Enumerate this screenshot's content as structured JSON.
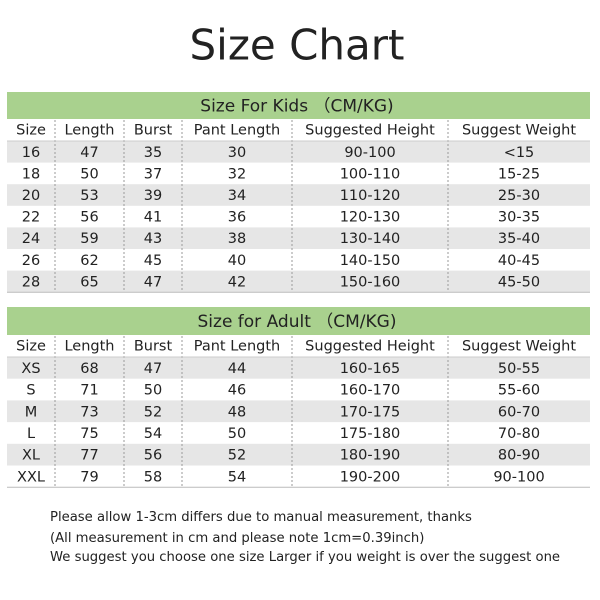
{
  "title": "Size Chart",
  "tables": [
    {
      "title": "Size For Kids （CM/KG)",
      "headers": [
        "Size",
        "Length",
        "Burst",
        "Pant Length",
        "Suggested Height",
        "Suggest Weight"
      ],
      "rows": [
        [
          "16",
          "47",
          "35",
          "30",
          "90-100",
          "<15"
        ],
        [
          "18",
          "50",
          "37",
          "32",
          "100-110",
          "15-25"
        ],
        [
          "20",
          "53",
          "39",
          "34",
          "110-120",
          "25-30"
        ],
        [
          "22",
          "56",
          "41",
          "36",
          "120-130",
          "30-35"
        ],
        [
          "24",
          "59",
          "43",
          "38",
          "130-140",
          "35-40"
        ],
        [
          "26",
          "62",
          "45",
          "40",
          "140-150",
          "40-45"
        ],
        [
          "28",
          "65",
          "47",
          "42",
          "150-160",
          "45-50"
        ]
      ]
    },
    {
      "title": "Size for Adult （CM/KG)",
      "headers": [
        "Size",
        "Length",
        "Burst",
        "Pant Length",
        "Suggested Height",
        "Suggest Weight"
      ],
      "rows": [
        [
          "XS",
          "68",
          "47",
          "44",
          "160-165",
          "50-55"
        ],
        [
          "S",
          "71",
          "50",
          "46",
          "160-170",
          "55-60"
        ],
        [
          "M",
          "73",
          "52",
          "48",
          "170-175",
          "60-70"
        ],
        [
          "L",
          "75",
          "54",
          "50",
          "175-180",
          "70-80"
        ],
        [
          "XL",
          "77",
          "56",
          "52",
          "180-190",
          "80-90"
        ],
        [
          "XXL",
          "79",
          "58",
          "54",
          "190-200",
          "90-100"
        ]
      ]
    }
  ],
  "notes": [
    "Please allow 1-3cm differs due to manual measurement, thanks",
    "(All measurement in cm and please note 1cm=0.39inch)",
    "We suggest you choose one size Larger if you weight is over the suggest one"
  ]
}
